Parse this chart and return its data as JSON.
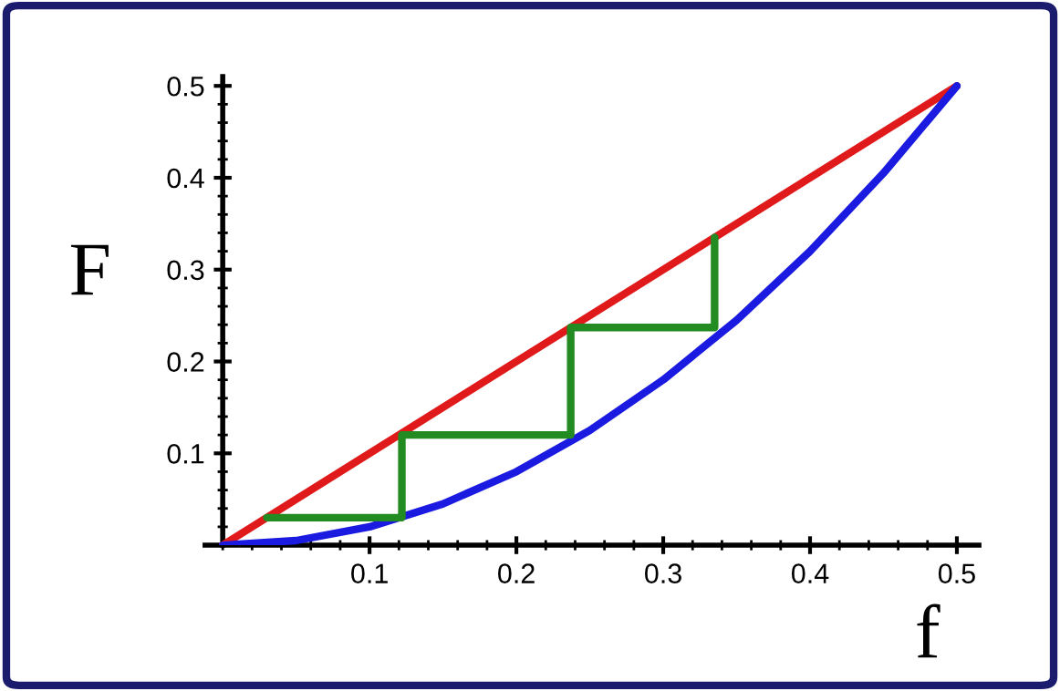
{
  "chart_data": {
    "type": "line",
    "xlabel": "f",
    "ylabel": "F",
    "xlim": [
      -0.012,
      0.515
    ],
    "ylim": [
      0,
      0.51
    ],
    "xticks": [
      0.1,
      0.2,
      0.3,
      0.4,
      0.5
    ],
    "yticks": [
      0.1,
      0.2,
      0.3,
      0.4,
      0.5
    ],
    "grid": false,
    "legend": false,
    "marker": "none",
    "line_style": "solid",
    "series": [
      {
        "color": "#e01a1a",
        "x": [
          0,
          0.5
        ],
        "values": [
          0,
          0.5
        ]
      },
      {
        "color": "#1a1ae0",
        "x": [
          0,
          0.05,
          0.1,
          0.15,
          0.2,
          0.25,
          0.3,
          0.35,
          0.4,
          0.45,
          0.5
        ],
        "values": [
          0,
          0.005,
          0.02,
          0.045,
          0.08,
          0.125,
          0.18,
          0.245,
          0.32,
          0.405,
          0.5
        ]
      },
      {
        "color": "#228b22",
        "x": [
          0.03,
          0.122,
          0.122,
          0.237,
          0.237,
          0.335,
          0.335
        ],
        "values": [
          0.03,
          0.03,
          0.12,
          0.12,
          0.237,
          0.237,
          0.335
        ]
      }
    ]
  }
}
